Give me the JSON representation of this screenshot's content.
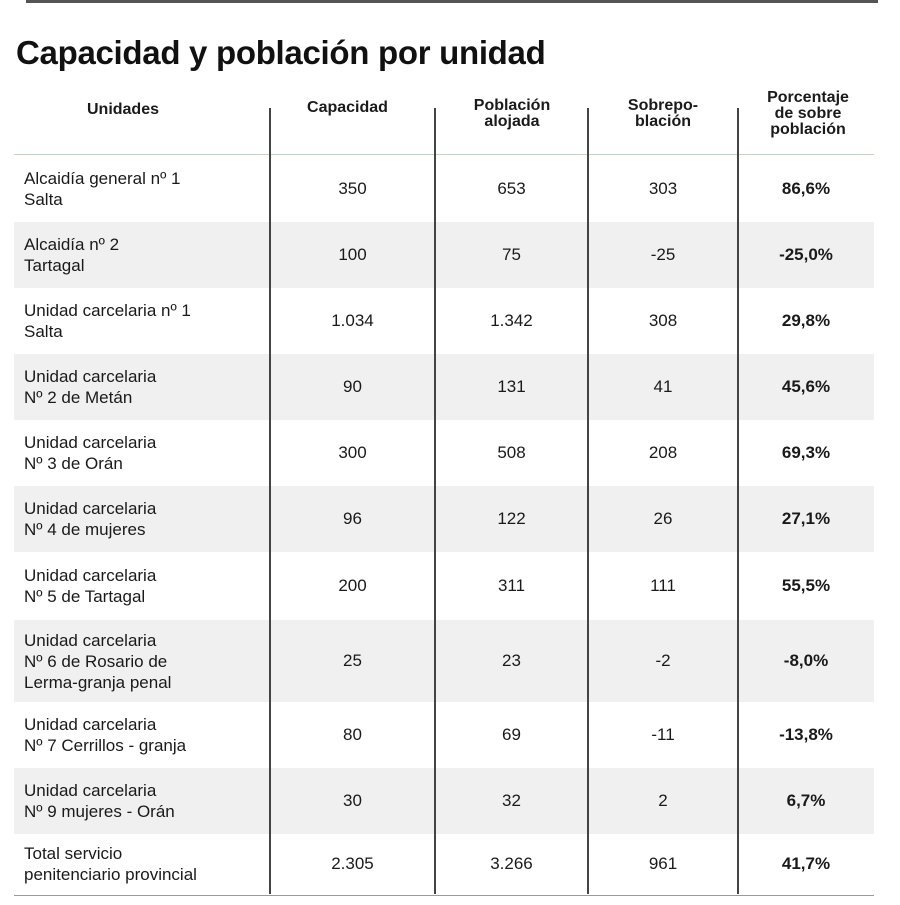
{
  "title": "Capacidad y población por unidad",
  "columns": {
    "unidades": "Unidades",
    "capacidad": "Capacidad",
    "poblacion": [
      "Población",
      "alojada"
    ],
    "sobrepoblacion": [
      "Sobrepo-",
      "blación"
    ],
    "porcentaje": [
      "Porcentaje",
      "de sobre",
      "población"
    ]
  },
  "rows": [
    {
      "unidad": [
        "Alcaidía general nº 1",
        "Salta"
      ],
      "capacidad": "350",
      "poblacion": "653",
      "sobrepoblacion": "303",
      "porcentaje": "86,6%"
    },
    {
      "unidad": [
        "Alcaidía nº 2",
        "Tartagal"
      ],
      "capacidad": "100",
      "poblacion": "75",
      "sobrepoblacion": "-25",
      "porcentaje": "-25,0%"
    },
    {
      "unidad": [
        "Unidad carcelaria nº 1",
        "Salta"
      ],
      "capacidad": "1.034",
      "poblacion": "1.342",
      "sobrepoblacion": "308",
      "porcentaje": "29,8%"
    },
    {
      "unidad": [
        "Unidad carcelaria",
        "Nº 2 de Metán"
      ],
      "capacidad": "90",
      "poblacion": "131",
      "sobrepoblacion": "41",
      "porcentaje": "45,6%"
    },
    {
      "unidad": [
        "Unidad carcelaria",
        "Nº 3 de Orán"
      ],
      "capacidad": "300",
      "poblacion": "508",
      "sobrepoblacion": "208",
      "porcentaje": "69,3%"
    },
    {
      "unidad": [
        "Unidad carcelaria",
        "Nº 4 de mujeres"
      ],
      "capacidad": "96",
      "poblacion": "122",
      "sobrepoblacion": "26",
      "porcentaje": "27,1%"
    },
    {
      "unidad": [
        "Unidad carcelaria",
        "Nº 5 de Tartagal"
      ],
      "capacidad": "200",
      "poblacion": "311",
      "sobrepoblacion": "111",
      "porcentaje": "55,5%"
    },
    {
      "unidad": [
        "Unidad carcelaria",
        "Nº 6 de Rosario de",
        "Lerma-granja penal"
      ],
      "capacidad": "25",
      "poblacion": "23",
      "sobrepoblacion": "-2",
      "porcentaje": "-8,0%"
    },
    {
      "unidad": [
        "Unidad carcelaria",
        "Nº 7 Cerrillos - granja"
      ],
      "capacidad": "80",
      "poblacion": "69",
      "sobrepoblacion": "-11",
      "porcentaje": "-13,8%"
    },
    {
      "unidad": [
        "Unidad carcelaria",
        "Nº 9 mujeres - Orán"
      ],
      "capacidad": "30",
      "poblacion": "32",
      "sobrepoblacion": "2",
      "porcentaje": "6,7%"
    }
  ],
  "total": {
    "unidad": [
      "Total servicio",
      "penitenciario provincial"
    ],
    "capacidad": "2.305",
    "poblacion": "3.266",
    "sobrepoblacion": "961",
    "porcentaje": "41,7%"
  }
}
